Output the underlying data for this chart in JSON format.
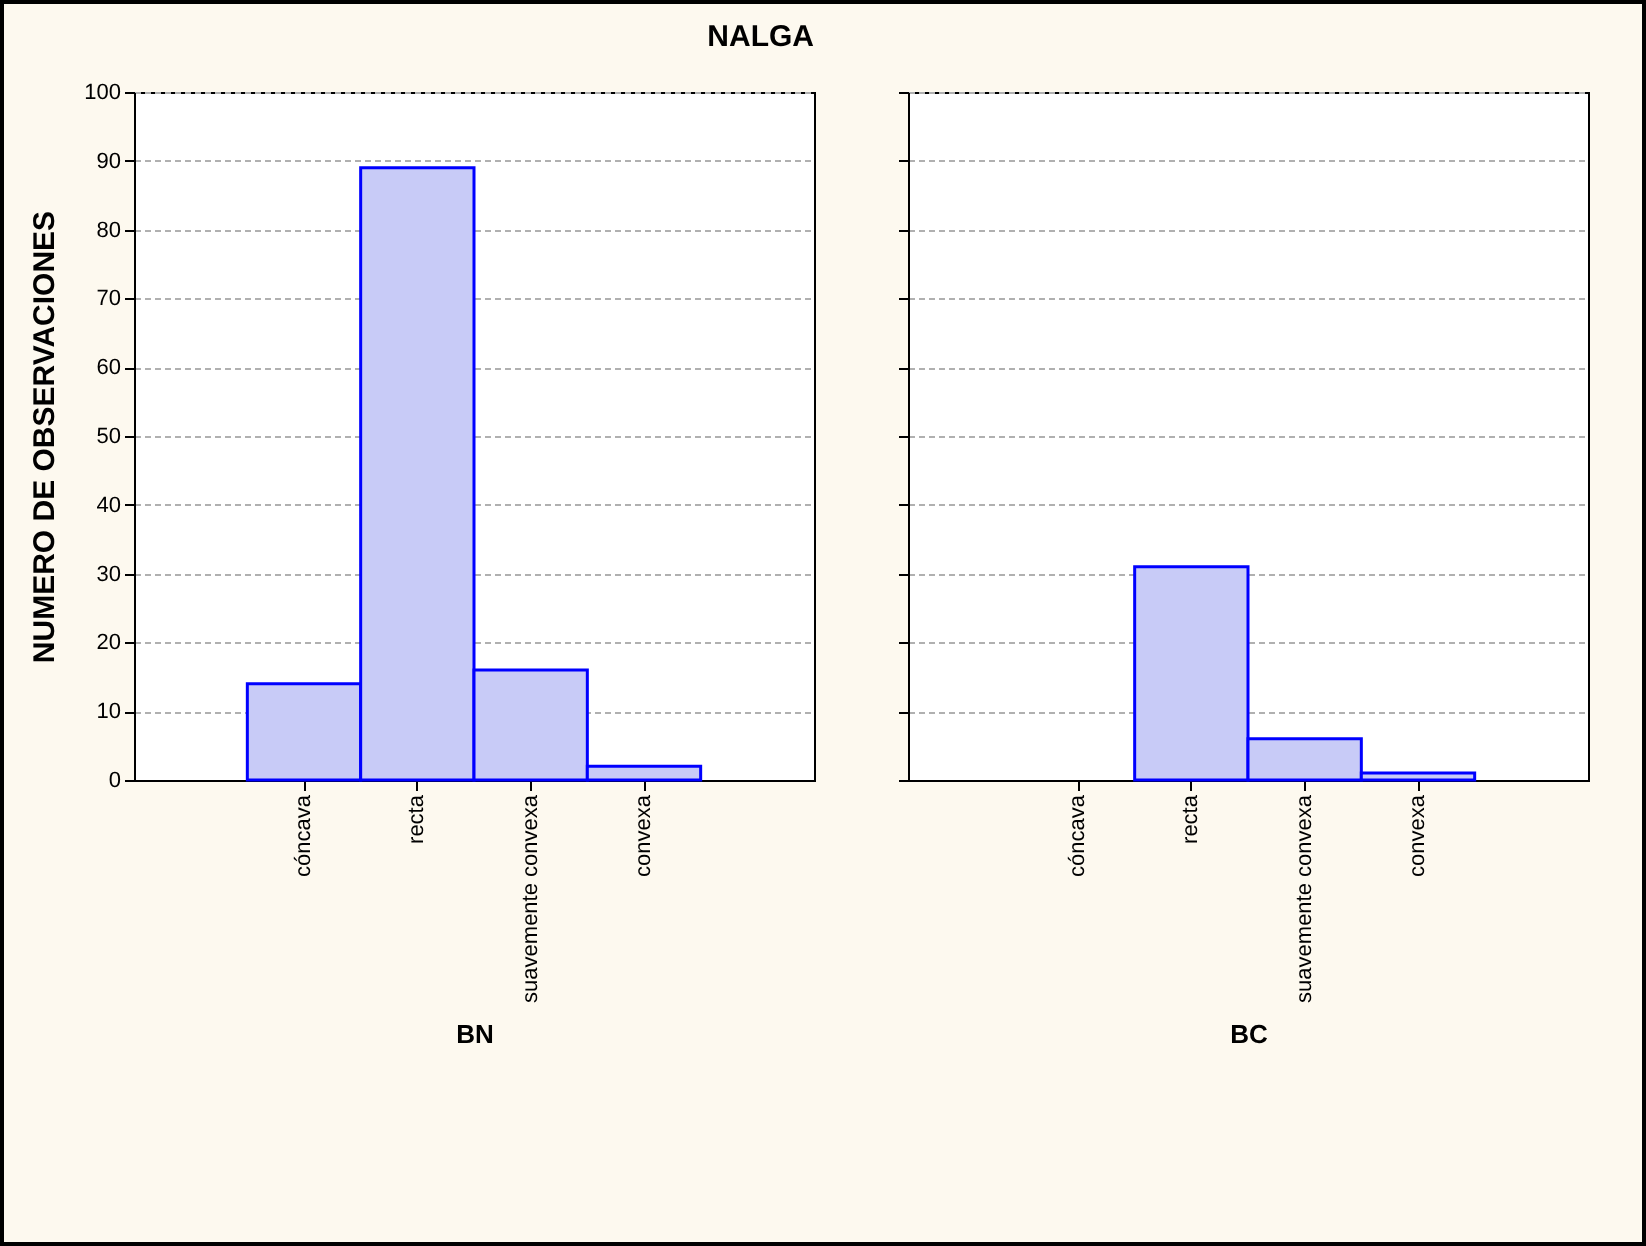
{
  "chart_data": [
    {
      "type": "bar",
      "title": "NALGA",
      "xlabel": "BN",
      "ylabel": "NUMERO DE OBSERVACIONES",
      "categories": [
        "cóncava",
        "recta",
        "suavemente convexa",
        "convexa"
      ],
      "values": [
        14,
        89,
        16,
        2
      ],
      "color": "#c8cbf7",
      "ylim": [
        0,
        100
      ],
      "yticks": [
        0,
        10,
        20,
        30,
        40,
        50,
        60,
        70,
        80,
        90,
        100
      ],
      "grid": "y"
    },
    {
      "type": "bar",
      "xlabel": "BC",
      "categories": [
        "cóncava",
        "recta",
        "suavemente convexa",
        "convexa"
      ],
      "values": [
        0,
        31,
        6,
        1
      ],
      "color": "#c8cbf7",
      "ylim": [
        0,
        100
      ],
      "yticks": [
        0,
        10,
        20,
        30,
        40,
        50,
        60,
        70,
        80,
        90,
        100
      ],
      "grid": "y",
      "tick_labels": "x"
    }
  ]
}
